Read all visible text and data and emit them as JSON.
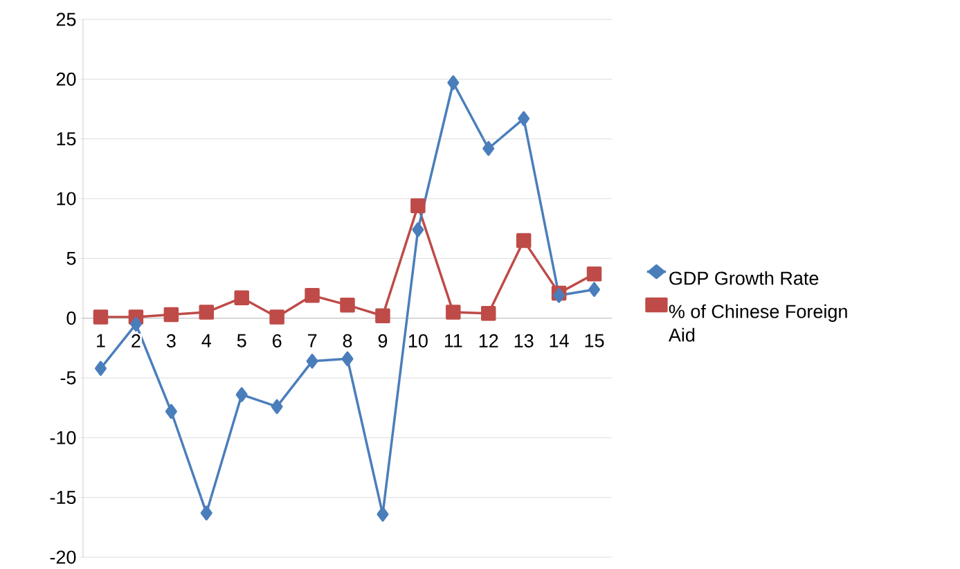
{
  "chart_data": {
    "type": "line",
    "categories": [
      "1",
      "2",
      "3",
      "4",
      "5",
      "6",
      "7",
      "8",
      "9",
      "10",
      "11",
      "12",
      "13",
      "14",
      "15"
    ],
    "series": [
      {
        "name": "GDP Growth Rate",
        "color": "#4a7ebb",
        "marker": "diamond",
        "values": [
          -4.2,
          -0.5,
          -7.8,
          -16.3,
          -6.4,
          -7.4,
          -3.6,
          -3.4,
          -16.4,
          7.4,
          19.7,
          14.2,
          16.7,
          1.9,
          2.4
        ]
      },
      {
        "name": "% of Chinese Foreign Aid",
        "color": "#be4b48",
        "marker": "square",
        "values": [
          0.1,
          0.1,
          0.3,
          0.5,
          1.7,
          0.1,
          1.9,
          1.1,
          0.2,
          9.4,
          0.5,
          0.4,
          6.5,
          2.1,
          3.7
        ]
      }
    ],
    "ylim": [
      -20,
      25
    ],
    "yticks": [
      -20,
      -15,
      -10,
      -5,
      0,
      5,
      10,
      15,
      20,
      25
    ],
    "grid": "y",
    "legend": "right",
    "line_style": "solid"
  }
}
